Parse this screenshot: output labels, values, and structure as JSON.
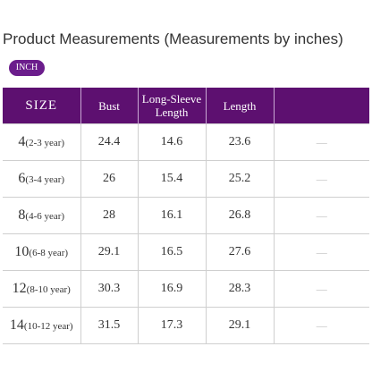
{
  "header": {
    "title": "Product Measurements (Measurements by inches)",
    "unit_badge": "INCH"
  },
  "table": {
    "columns": [
      "SIZE",
      "Bust",
      "Long-Sleeve Length",
      "Length",
      ""
    ],
    "rows": [
      {
        "size": "4",
        "age": "(2-3 year)",
        "bust": "24.4",
        "sleeve": "14.6",
        "length": "23.6",
        "extra": "—"
      },
      {
        "size": "6",
        "age": "(3-4 year)",
        "bust": "26",
        "sleeve": "15.4",
        "length": "25.2",
        "extra": "—"
      },
      {
        "size": "8",
        "age": "(4-6 year)",
        "bust": "28",
        "sleeve": "16.1",
        "length": "26.8",
        "extra": "—"
      },
      {
        "size": "10",
        "age": "(6-8 year)",
        "bust": "29.1",
        "sleeve": "16.5",
        "length": "27.6",
        "extra": "—"
      },
      {
        "size": "12",
        "age": "(8-10 year)",
        "bust": "30.3",
        "sleeve": "16.9",
        "length": "28.3",
        "extra": "—"
      },
      {
        "size": "14",
        "age": "(10-12 year)",
        "bust": "31.5",
        "sleeve": "17.3",
        "length": "29.1",
        "extra": "—"
      }
    ]
  }
}
